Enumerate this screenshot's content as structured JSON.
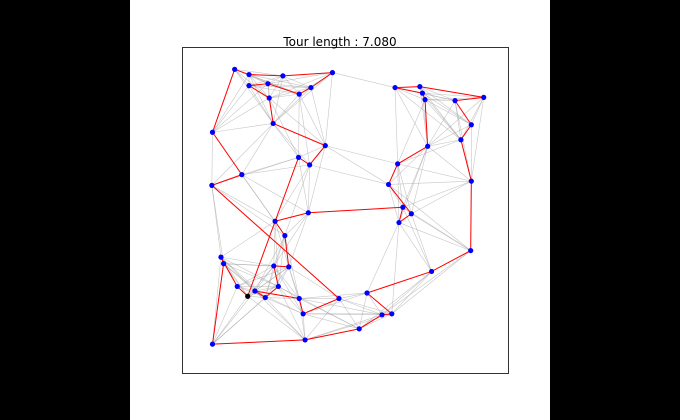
{
  "title": "Tour length : 7.080",
  "colors": {
    "node": "#0000ff",
    "tour": "#ff0000",
    "candidate": "#999999",
    "frame": "#000000",
    "start": "#000000"
  },
  "chart_data": {
    "type": "scatter",
    "title": "Tour length : 7.080",
    "xlim": [
      0,
      1
    ],
    "ylim": [
      0,
      1
    ],
    "grid": false,
    "nodes": [
      [
        0.16,
        0.933
      ],
      [
        0.204,
        0.883
      ],
      [
        0.204,
        0.917
      ],
      [
        0.262,
        0.889
      ],
      [
        0.266,
        0.845
      ],
      [
        0.278,
        0.767
      ],
      [
        0.308,
        0.913
      ],
      [
        0.358,
        0.857
      ],
      [
        0.394,
        0.877
      ],
      [
        0.46,
        0.923
      ],
      [
        0.092,
        0.74
      ],
      [
        0.09,
        0.577
      ],
      [
        0.182,
        0.61
      ],
      [
        0.356,
        0.663
      ],
      [
        0.39,
        0.64
      ],
      [
        0.438,
        0.699
      ],
      [
        0.652,
        0.877
      ],
      [
        0.728,
        0.88
      ],
      [
        0.736,
        0.86
      ],
      [
        0.836,
        0.837
      ],
      [
        0.924,
        0.847
      ],
      [
        0.744,
        0.84
      ],
      [
        0.886,
        0.763
      ],
      [
        0.752,
        0.697
      ],
      [
        0.66,
        0.643
      ],
      [
        0.854,
        0.717
      ],
      [
        0.886,
        0.59
      ],
      [
        0.632,
        0.58
      ],
      [
        0.676,
        0.51
      ],
      [
        0.386,
        0.493
      ],
      [
        0.284,
        0.467
      ],
      [
        0.314,
        0.423
      ],
      [
        0.702,
        0.49
      ],
      [
        0.664,
        0.463
      ],
      [
        0.884,
        0.377
      ],
      [
        0.764,
        0.313
      ],
      [
        0.118,
        0.357
      ],
      [
        0.126,
        0.337
      ],
      [
        0.28,
        0.33
      ],
      [
        0.326,
        0.327
      ],
      [
        0.168,
        0.267
      ],
      [
        0.2,
        0.237
      ],
      [
        0.222,
        0.253
      ],
      [
        0.254,
        0.233
      ],
      [
        0.294,
        0.267
      ],
      [
        0.358,
        0.23
      ],
      [
        0.566,
        0.247
      ],
      [
        0.612,
        0.18
      ],
      [
        0.642,
        0.183
      ],
      [
        0.37,
        0.183
      ],
      [
        0.092,
        0.09
      ],
      [
        0.376,
        0.103
      ],
      [
        0.542,
        0.137
      ],
      [
        0.48,
        0.23
      ]
    ],
    "start_node": 41,
    "tour": [
      41,
      40,
      36,
      37,
      50,
      51,
      52,
      47,
      48,
      46,
      35,
      34,
      26,
      25,
      22,
      19,
      20,
      17,
      16,
      18,
      21,
      23,
      24,
      27,
      32,
      33,
      28,
      29,
      30,
      31,
      39,
      38,
      44,
      43,
      42,
      45,
      49,
      53,
      11,
      12,
      10,
      0,
      2,
      6,
      9,
      8,
      7,
      3,
      1,
      4,
      5,
      15,
      14,
      13
    ],
    "tour_length": 7.08
  }
}
